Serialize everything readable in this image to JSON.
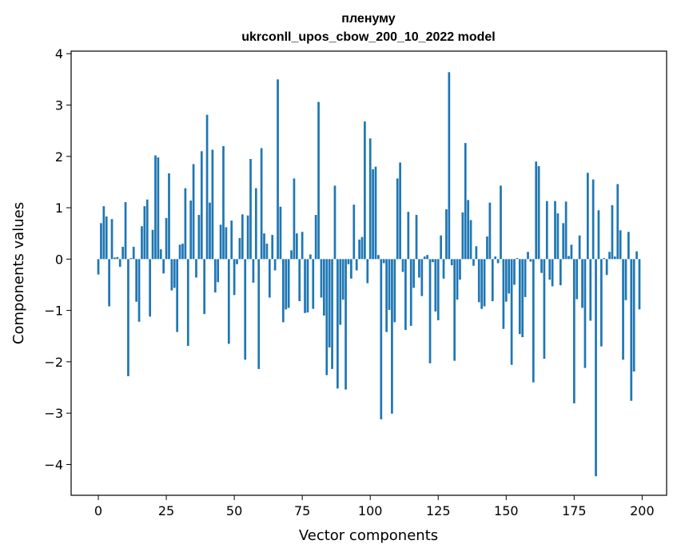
{
  "chart_data": {
    "type": "bar",
    "title": "пленуму",
    "subtitle": "ukrconll_upos_cbow_200_10_2022 model",
    "xlabel": "Vector components",
    "ylabel": "Components values",
    "xlim": [
      -10,
      209
    ],
    "ylim": [
      -4.6,
      4.05
    ],
    "xticks": [
      0,
      25,
      50,
      75,
      100,
      125,
      150,
      175,
      200
    ],
    "yticks": [
      -4,
      -3,
      -2,
      -1,
      0,
      1,
      2,
      3,
      4
    ],
    "xtick_labels": [
      "0",
      "25",
      "50",
      "75",
      "100",
      "125",
      "150",
      "175",
      "200"
    ],
    "ytick_labels": [
      "−4",
      "−3",
      "−2",
      "−1",
      "0",
      "1",
      "2",
      "3",
      "4"
    ],
    "bar_color": "#1f77b4",
    "values": [
      -0.3,
      0.7,
      1.03,
      0.83,
      -0.92,
      0.78,
      0.03,
      0.04,
      -0.15,
      0.24,
      1.11,
      -2.28,
      0.02,
      0.24,
      -0.83,
      -1.22,
      0.64,
      1.03,
      1.16,
      -1.12,
      0.57,
      2.02,
      1.98,
      0.19,
      -0.28,
      0.8,
      1.67,
      -0.61,
      -0.56,
      -1.42,
      0.28,
      0.3,
      1.38,
      -1.69,
      1.14,
      1.85,
      -0.36,
      0.86,
      2.1,
      -1.07,
      2.81,
      1.1,
      2.13,
      -0.65,
      -0.45,
      0.67,
      2.2,
      0.62,
      -1.65,
      0.75,
      -0.7,
      -0.1,
      0.41,
      0.87,
      -1.96,
      0.85,
      1.95,
      -0.46,
      1.38,
      -2.14,
      2.16,
      0.5,
      0.3,
      -0.75,
      0.47,
      -0.22,
      3.5,
      1.02,
      -1.23,
      -0.98,
      -0.95,
      0.17,
      1.57,
      0.5,
      -0.82,
      0.53,
      -1.05,
      -1.04,
      0.09,
      -0.97,
      0.86,
      3.06,
      -0.75,
      -1.1,
      -2.26,
      -1.72,
      -2.14,
      1.43,
      -2.52,
      -1.28,
      -0.79,
      -2.54,
      -0.1,
      -0.38,
      1.06,
      -0.22,
      0.38,
      0.43,
      2.68,
      -0.47,
      2.35,
      1.75,
      1.8,
      0.08,
      -3.12,
      -0.08,
      -1.42,
      -0.99,
      -3.01,
      -1.23,
      1.57,
      1.88,
      -0.25,
      -1.38,
      0.92,
      -1.3,
      -0.56,
      0.86,
      -0.36,
      -0.72,
      0.05,
      0.08,
      -2.03,
      -0.06,
      -1.02,
      -1.19,
      0.46,
      -0.38,
      0.97,
      3.64,
      -0.12,
      -1.98,
      -0.79,
      -0.4,
      0.91,
      2.26,
      1.15,
      0.76,
      -0.13,
      0.25,
      -0.84,
      -0.97,
      -0.92,
      0.44,
      1.1,
      -0.82,
      0.05,
      -0.08,
      1.43,
      -1.36,
      -0.83,
      -0.67,
      -2.06,
      -0.5,
      0.02,
      -1.46,
      -1.52,
      -0.74,
      0.14,
      -0.05,
      -2.4,
      1.9,
      1.81,
      -0.27,
      -1.94,
      1.13,
      -0.4,
      -0.53,
      1.13,
      0.89,
      -0.51,
      0.7,
      1.12,
      0.06,
      0.28,
      -2.81,
      -0.78,
      0.46,
      -0.95,
      -2.12,
      1.68,
      -1.2,
      1.55,
      -4.23,
      0.95,
      -1.7,
      0.02,
      -0.31,
      0.14,
      1.05,
      0.05,
      1.46,
      0.56,
      -1.96,
      -0.8,
      0.53,
      -2.76,
      -2.19,
      0.15,
      -0.98
    ]
  }
}
